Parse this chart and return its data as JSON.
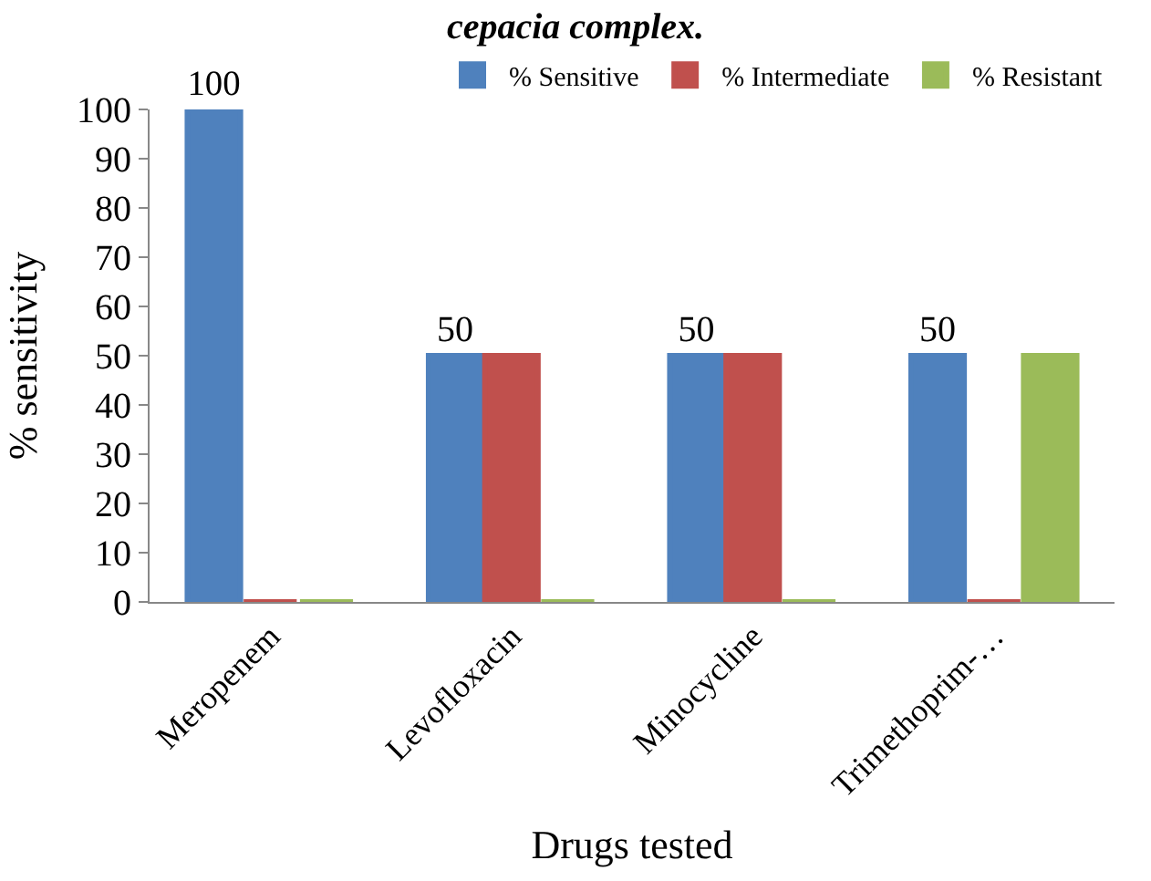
{
  "chart_data": {
    "type": "bar",
    "title": "cepacia complex.",
    "xlabel": "Drugs tested",
    "ylabel": "% sensitivity",
    "categories": [
      "Meropenem",
      "Levofloxacin",
      "Minocycline",
      "Trimethoprim-…"
    ],
    "series": [
      {
        "name": "% Sensitive",
        "color": "#4f81bd",
        "values": [
          100,
          50,
          50,
          50
        ],
        "value_labels": [
          "100",
          "50",
          "50",
          "50"
        ]
      },
      {
        "name": "% Intermediate",
        "color": "#c0504d",
        "values": [
          0,
          50,
          50,
          0
        ]
      },
      {
        "name": "% Resistant",
        "color": "#9bbb59",
        "values": [
          0,
          0,
          0,
          50
        ]
      }
    ],
    "ylim": [
      0,
      100
    ],
    "yticks": [
      0,
      10,
      20,
      30,
      40,
      50,
      60,
      70,
      80,
      90,
      100
    ],
    "legend": "top right"
  }
}
